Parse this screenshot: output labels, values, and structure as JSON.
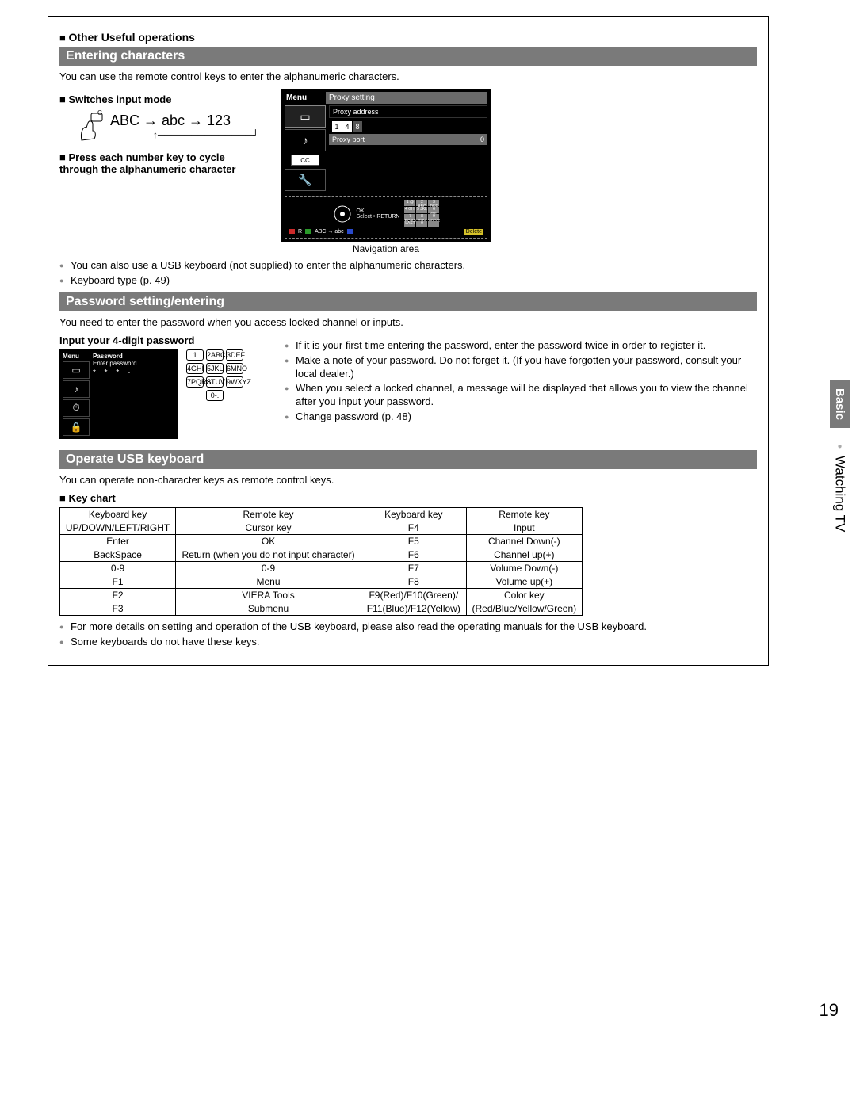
{
  "header": {
    "other_useful_operations": "Other Useful operations"
  },
  "entering": {
    "bar": "Entering characters",
    "intro": "You can use the remote control keys to enter the alphanumeric characters.",
    "switches": "Switches input mode",
    "mode_seq": "ABC → abc → 123",
    "mode_g": "G",
    "mode_back": "↑",
    "press_each": "Press each number key to cycle through the alphanumeric character",
    "nav_caption": "Navigation area",
    "notes": [
      "You can also use a USB keyboard (not supplied) to enter the alphanumeric characters.",
      "Keyboard type (p. 49)"
    ],
    "tv": {
      "menu": "Menu",
      "title": "Proxy setting",
      "field1": "Proxy address",
      "digits": [
        "1",
        "4",
        "8"
      ],
      "port_label": "Proxy port",
      "port_value": "0",
      "ok": "OK",
      "select": "Select",
      "return": "RETURN",
      "abc_link": "ABC → abc",
      "delete": "Delete",
      "r_label": "R",
      "g_label": "G",
      "b_label": "B",
      "y_label": "Y",
      "keypad": [
        "1 @",
        "2 ABC",
        "3 DEF",
        "4 GHI",
        "5 JKL",
        "6 MNO",
        "7 PQRS",
        "8 TUV",
        "9 WXYZ",
        "LAST",
        "0",
        "—"
      ]
    }
  },
  "password": {
    "bar": "Password setting/entering",
    "intro": "You need to enter the password when you access locked channel or inputs.",
    "input_title": "Input your 4-digit password",
    "screen": {
      "menu": "Menu",
      "title": "Password",
      "enter": "Enter password.",
      "dots": "* * * -"
    },
    "keypad": [
      "1",
      "2ABC",
      "3DEF",
      "4GHI",
      "5JKL",
      "6MNO",
      "7PQRS",
      "8TUV",
      "9WXYZ",
      "",
      "0-.",
      ""
    ],
    "notes": [
      "If it is your first time entering the password, enter the password twice in order to register it.",
      "Make a note of your password. Do not forget it. (If you have forgotten your password, consult your local dealer.)",
      "When you select a locked channel, a message will be displayed that allows you to view the channel after you input your password.",
      "Change password (p. 48)"
    ]
  },
  "usb": {
    "bar": "Operate USB keyboard",
    "intro": "You can operate non-character keys as remote control keys.",
    "keychart_title": "Key chart",
    "headers": [
      "Keyboard key",
      "Remote key",
      "Keyboard key",
      "Remote key"
    ],
    "rows": [
      [
        "UP/DOWN/LEFT/RIGHT",
        "Cursor key",
        "F4",
        "Input"
      ],
      [
        "Enter",
        "OK",
        "F5",
        "Channel Down(-)"
      ],
      [
        "BackSpace",
        "Return (when you do not input character)",
        "F6",
        "Channel up(+)"
      ],
      [
        "0-9",
        "0-9",
        "F7",
        "Volume Down(-)"
      ],
      [
        "F1",
        "Menu",
        "F8",
        "Volume up(+)"
      ],
      [
        "F2",
        "VIERA Tools",
        "F9(Red)/F10(Green)/",
        "Color key"
      ],
      [
        "F3",
        "Submenu",
        "F11(Blue)/F12(Yellow)",
        "(Red/Blue/Yellow/Green)"
      ]
    ],
    "notes": [
      "For more details on setting and operation of the USB keyboard, please also read the operating manuals for the USB keyboard.",
      "Some keyboards do not have these keys."
    ]
  },
  "side": {
    "basic": "Basic",
    "watching": "Watching TV"
  },
  "page_number": "19",
  "colors": {
    "bar_bg": "#7a7a7a",
    "red": "#cc2a2a",
    "green": "#2a9a2a",
    "blue": "#2a4acc",
    "yellow": "#d6c22a"
  }
}
